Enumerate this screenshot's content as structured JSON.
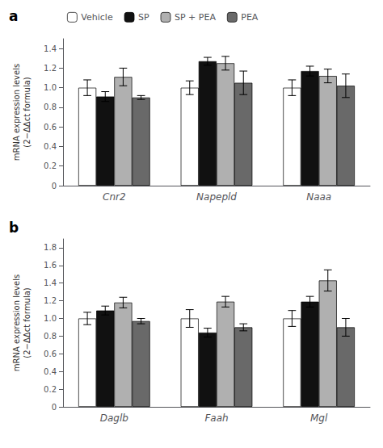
{
  "chart_data": [
    {
      "type": "bar",
      "title": "a",
      "categories": [
        "Cnr2",
        "Napepld",
        "Naaa"
      ],
      "series": [
        {
          "name": "Vehicle",
          "color": "#ffffff",
          "values": [
            1.0,
            1.0,
            1.0
          ],
          "errors": [
            0.08,
            0.07,
            0.08
          ]
        },
        {
          "name": "SP",
          "color": "#111111",
          "values": [
            0.91,
            1.27,
            1.17
          ],
          "errors": [
            0.05,
            0.04,
            0.05
          ]
        },
        {
          "name": "SP + PEA",
          "color": "#b0b0b0",
          "values": [
            1.11,
            1.25,
            1.12
          ],
          "errors": [
            0.09,
            0.07,
            0.07
          ]
        },
        {
          "name": "PEA",
          "color": "#696969",
          "values": [
            0.9,
            1.05,
            1.02
          ],
          "errors": [
            0.02,
            0.12,
            0.12
          ]
        }
      ],
      "ylabel": "mRNA expression levels\n(2−ΔΔct formula)",
      "ylim": [
        0,
        1.5
      ],
      "yticks": [
        0,
        0.2,
        0.4,
        0.6,
        0.8,
        {
          "value": 1.0,
          "label": "1.0"
        },
        1.2,
        1.4
      ],
      "grid": false,
      "legend": "upper left"
    },
    {
      "type": "bar",
      "title": "b",
      "categories": [
        "Daglb",
        "Faah",
        "Mgl"
      ],
      "series": [
        {
          "name": "Vehicle",
          "color": "#ffffff",
          "values": [
            1.0,
            1.0,
            1.0
          ],
          "errors": [
            0.07,
            0.1,
            0.09
          ]
        },
        {
          "name": "SP",
          "color": "#111111",
          "values": [
            1.09,
            0.84,
            1.19
          ],
          "errors": [
            0.05,
            0.05,
            0.06
          ]
        },
        {
          "name": "SP + PEA",
          "color": "#b0b0b0",
          "values": [
            1.18,
            1.19,
            1.43
          ],
          "errors": [
            0.06,
            0.06,
            0.12
          ]
        },
        {
          "name": "PEA",
          "color": "#696969",
          "values": [
            0.97,
            0.9,
            0.9
          ],
          "errors": [
            0.03,
            0.04,
            0.1
          ]
        }
      ],
      "ylabel": "mRNA expression levels\n(2−ΔΔct formula)",
      "ylim": [
        0,
        1.9
      ],
      "yticks": [
        0,
        0.2,
        0.4,
        0.6,
        0.8,
        {
          "value": 1.0,
          "label": "1.0"
        },
        1.2,
        1.4,
        1.6,
        1.8
      ],
      "grid": false
    }
  ]
}
